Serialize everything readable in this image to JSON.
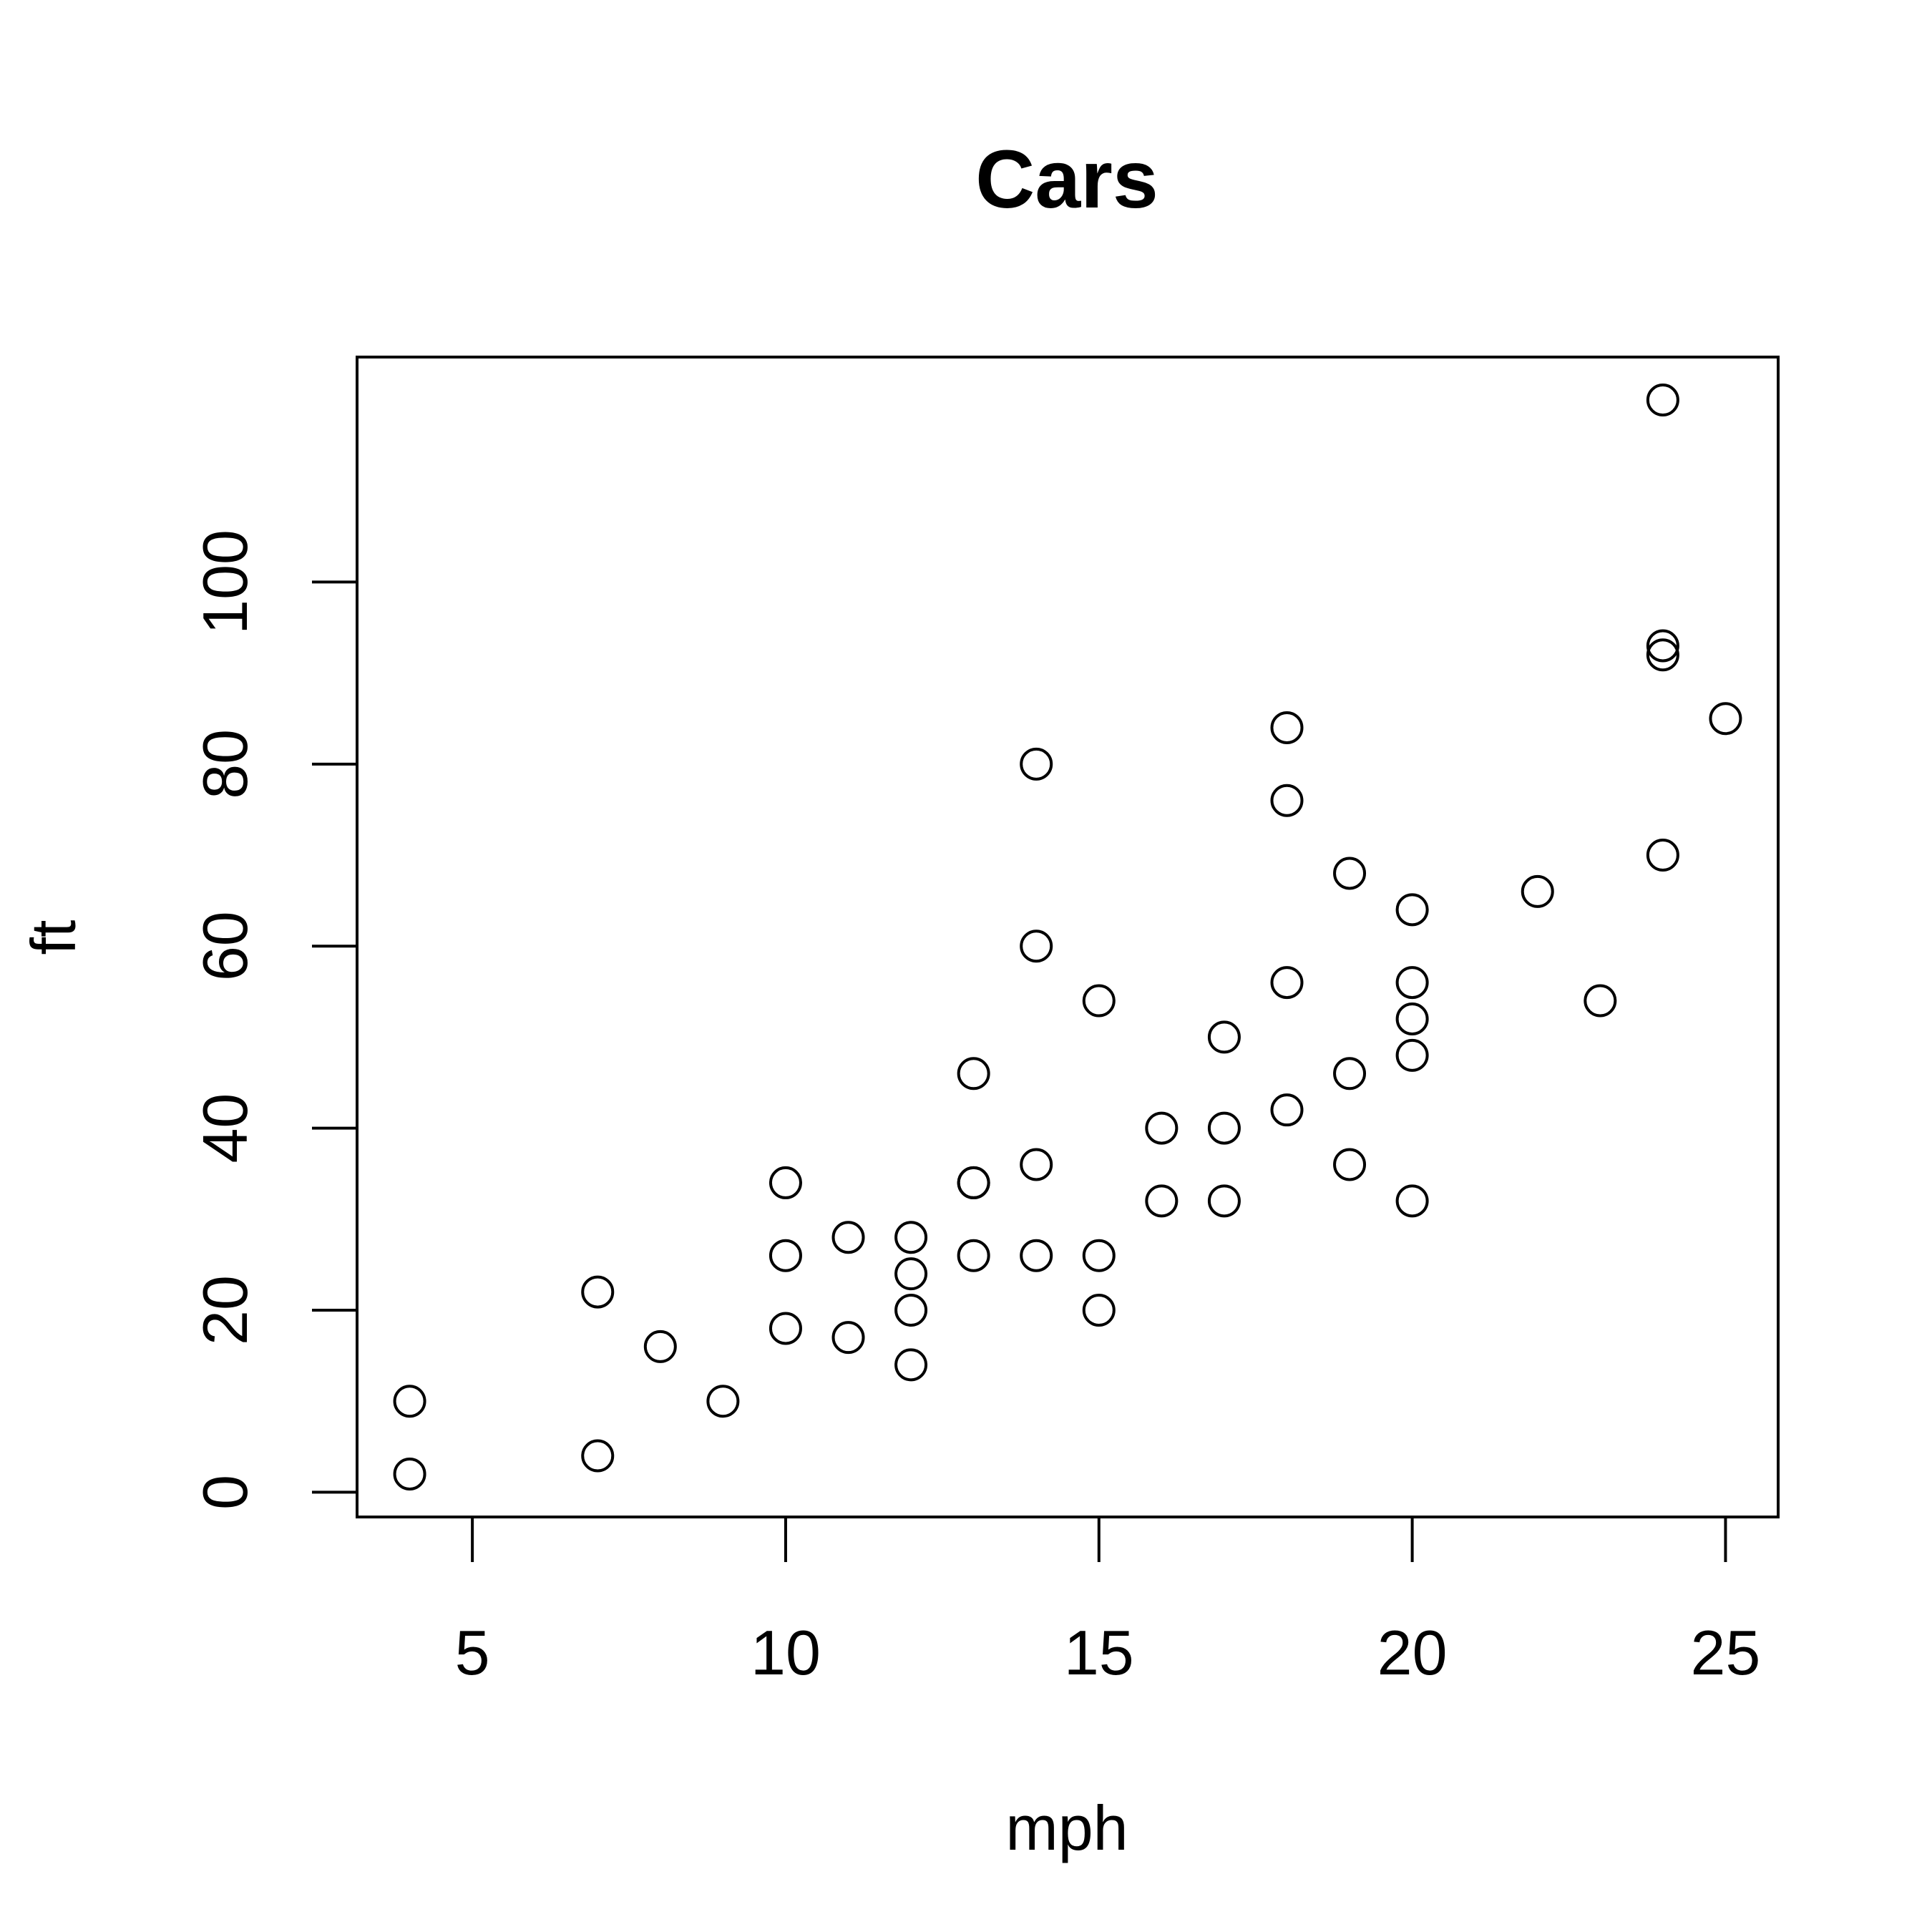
{
  "chart_data": {
    "type": "scatter",
    "title": "Cars",
    "xlabel": "mph",
    "ylabel": "ft",
    "xlim": [
      3.16,
      25.84
    ],
    "ylim": [
      -2.72,
      124.72
    ],
    "x_ticks": [
      5,
      10,
      15,
      20,
      25
    ],
    "y_ticks": [
      0,
      20,
      40,
      60,
      80,
      100
    ],
    "grid": false,
    "marker": "open-circle",
    "color": "#000000",
    "points": [
      {
        "x": 4,
        "y": 2
      },
      {
        "x": 4,
        "y": 10
      },
      {
        "x": 7,
        "y": 4
      },
      {
        "x": 7,
        "y": 22
      },
      {
        "x": 8,
        "y": 16
      },
      {
        "x": 9,
        "y": 10
      },
      {
        "x": 10,
        "y": 18
      },
      {
        "x": 10,
        "y": 26
      },
      {
        "x": 10,
        "y": 34
      },
      {
        "x": 11,
        "y": 17
      },
      {
        "x": 11,
        "y": 28
      },
      {
        "x": 12,
        "y": 14
      },
      {
        "x": 12,
        "y": 20
      },
      {
        "x": 12,
        "y": 24
      },
      {
        "x": 12,
        "y": 28
      },
      {
        "x": 13,
        "y": 26
      },
      {
        "x": 13,
        "y": 34
      },
      {
        "x": 13,
        "y": 34
      },
      {
        "x": 13,
        "y": 46
      },
      {
        "x": 14,
        "y": 26
      },
      {
        "x": 14,
        "y": 36
      },
      {
        "x": 14,
        "y": 60
      },
      {
        "x": 14,
        "y": 80
      },
      {
        "x": 15,
        "y": 20
      },
      {
        "x": 15,
        "y": 26
      },
      {
        "x": 15,
        "y": 54
      },
      {
        "x": 16,
        "y": 32
      },
      {
        "x": 16,
        "y": 40
      },
      {
        "x": 17,
        "y": 32
      },
      {
        "x": 17,
        "y": 40
      },
      {
        "x": 17,
        "y": 50
      },
      {
        "x": 18,
        "y": 42
      },
      {
        "x": 18,
        "y": 56
      },
      {
        "x": 18,
        "y": 76
      },
      {
        "x": 18,
        "y": 84
      },
      {
        "x": 19,
        "y": 36
      },
      {
        "x": 19,
        "y": 46
      },
      {
        "x": 19,
        "y": 68
      },
      {
        "x": 20,
        "y": 32
      },
      {
        "x": 20,
        "y": 48
      },
      {
        "x": 20,
        "y": 52
      },
      {
        "x": 20,
        "y": 56
      },
      {
        "x": 20,
        "y": 64
      },
      {
        "x": 22,
        "y": 66
      },
      {
        "x": 23,
        "y": 54
      },
      {
        "x": 24,
        "y": 70
      },
      {
        "x": 24,
        "y": 92
      },
      {
        "x": 24,
        "y": 93
      },
      {
        "x": 24,
        "y": 120
      },
      {
        "x": 25,
        "y": 85
      }
    ]
  }
}
